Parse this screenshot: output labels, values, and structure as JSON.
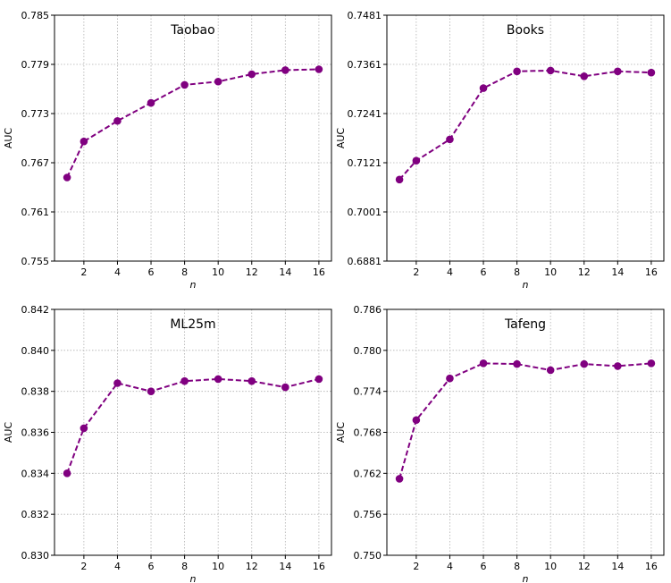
{
  "figure": {
    "background": "#ffffff",
    "series_color": "#800080"
  },
  "chart_data": [
    {
      "type": "line",
      "title": "Taobao",
      "xlabel": "n",
      "ylabel": "AUC",
      "x": [
        1,
        2,
        4,
        6,
        8,
        10,
        12,
        14,
        16
      ],
      "x_ticks": [
        2,
        4,
        6,
        8,
        10,
        12,
        14,
        16
      ],
      "xlim": [
        0.25,
        16.75
      ],
      "y_ticks": [
        "0.755",
        "0.761",
        "0.767",
        "0.773",
        "0.779",
        "0.785"
      ],
      "ylim": [
        0.755,
        0.785
      ],
      "grid": true,
      "series": [
        {
          "name": "AUC",
          "values": [
            0.7652,
            0.7696,
            0.7721,
            0.7743,
            0.7765,
            0.7769,
            0.7778,
            0.7783,
            0.7784
          ]
        }
      ]
    },
    {
      "type": "line",
      "title": "Books",
      "xlabel": "n",
      "ylabel": "AUC",
      "x": [
        1,
        2,
        4,
        6,
        8,
        10,
        12,
        14,
        16
      ],
      "x_ticks": [
        2,
        4,
        6,
        8,
        10,
        12,
        14,
        16
      ],
      "xlim": [
        0.25,
        16.75
      ],
      "y_ticks": [
        "0.6881",
        "0.7001",
        "0.7121",
        "0.7241",
        "0.7361",
        "0.7481"
      ],
      "ylim": [
        0.6881,
        0.7481
      ],
      "grid": true,
      "series": [
        {
          "name": "AUC",
          "values": [
            0.708,
            0.7126,
            0.7178,
            0.7303,
            0.7344,
            0.7346,
            0.7332,
            0.7344,
            0.7341
          ]
        }
      ]
    },
    {
      "type": "line",
      "title": "ML25m",
      "xlabel": "n",
      "ylabel": "AUC",
      "x": [
        1,
        2,
        4,
        6,
        8,
        10,
        12,
        14,
        16
      ],
      "x_ticks": [
        2,
        4,
        6,
        8,
        10,
        12,
        14,
        16
      ],
      "xlim": [
        0.25,
        16.75
      ],
      "y_ticks": [
        "0.830",
        "0.832",
        "0.834",
        "0.836",
        "0.838",
        "0.840",
        "0.842"
      ],
      "ylim": [
        0.83,
        0.842
      ],
      "grid": true,
      "series": [
        {
          "name": "AUC",
          "values": [
            0.834,
            0.8362,
            0.8384,
            0.838,
            0.8385,
            0.8386,
            0.8385,
            0.8382,
            0.8386
          ]
        }
      ]
    },
    {
      "type": "line",
      "title": "Tafeng",
      "xlabel": "n",
      "ylabel": "AUC",
      "x": [
        1,
        2,
        4,
        6,
        8,
        10,
        12,
        14,
        16
      ],
      "x_ticks": [
        2,
        4,
        6,
        8,
        10,
        12,
        14,
        16
      ],
      "xlim": [
        0.25,
        16.75
      ],
      "y_ticks": [
        "0.750",
        "0.756",
        "0.762",
        "0.768",
        "0.774",
        "0.780",
        "0.786"
      ],
      "ylim": [
        0.75,
        0.786
      ],
      "grid": true,
      "series": [
        {
          "name": "AUC",
          "values": [
            0.7612,
            0.7698,
            0.7759,
            0.7781,
            0.778,
            0.7771,
            0.778,
            0.7777,
            0.7781
          ]
        }
      ]
    }
  ]
}
